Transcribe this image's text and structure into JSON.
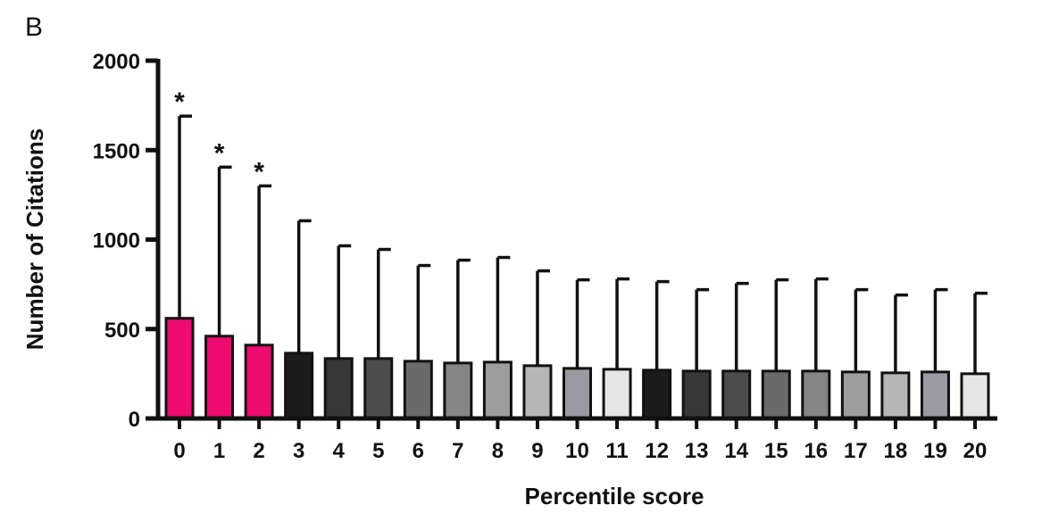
{
  "panel_label": "B",
  "chart_data": {
    "type": "bar",
    "title": "",
    "xlabel": "Percentile score",
    "ylabel": "Number of Citations",
    "ylim": [
      0,
      2000
    ],
    "yticks": [
      "0",
      "500",
      "1000",
      "1500",
      "2000"
    ],
    "ytick_values": [
      0,
      500,
      1000,
      1500,
      2000
    ],
    "grid": false,
    "legend": "none",
    "categories": [
      "0",
      "1",
      "2",
      "3",
      "4",
      "5",
      "6",
      "7",
      "8",
      "9",
      "10",
      "11",
      "12",
      "13",
      "14",
      "15",
      "16",
      "17",
      "18",
      "19",
      "20"
    ],
    "values": [
      560,
      460,
      410,
      365,
      335,
      335,
      320,
      310,
      315,
      295,
      280,
      275,
      270,
      265,
      265,
      265,
      265,
      260,
      255,
      260,
      250
    ],
    "error_upper": [
      1690,
      1405,
      1300,
      1105,
      965,
      945,
      855,
      885,
      900,
      825,
      775,
      780,
      765,
      720,
      755,
      775,
      780,
      720,
      690,
      720,
      700
    ],
    "significance": [
      "*",
      "*",
      "*",
      "",
      "",
      "",
      "",
      "",
      "",
      "",
      "",
      "",
      "",
      "",
      "",
      "",
      "",
      "",
      "",
      "",
      ""
    ],
    "colors": [
      "#ee0c71",
      "#ee0c71",
      "#ee0c71",
      "#1c1c1c",
      "#383838",
      "#4c4c4c",
      "#6a6a6a",
      "#858585",
      "#9d9d9d",
      "#b6b6b6",
      "#9a9aa0",
      "#e6e6e6",
      "#1c1c1c",
      "#383838",
      "#4c4c4c",
      "#6a6a6a",
      "#858585",
      "#9d9d9d",
      "#b6b6b6",
      "#9a9aa0",
      "#e6e6e6"
    ]
  }
}
